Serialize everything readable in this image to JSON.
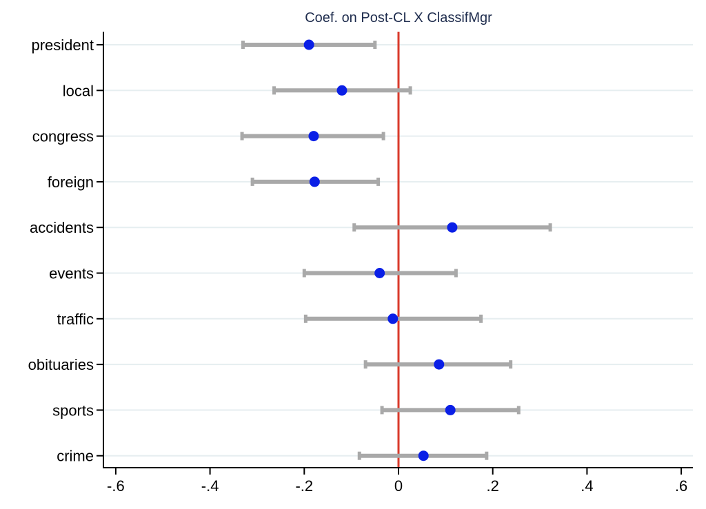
{
  "chart_data": {
    "type": "scatter",
    "subtype": "coefficient-plot",
    "title": "Coef. on Post-CL X ClassifMgr",
    "xlabel": "",
    "ylabel": "",
    "xlim": [
      -0.62,
      0.62
    ],
    "xticks": [
      -0.6,
      -0.4,
      -0.2,
      0,
      0.2,
      0.4,
      0.6
    ],
    "xtick_labels": [
      "-.6",
      "-.4",
      "-.2",
      "0",
      ".2",
      ".4",
      ".6"
    ],
    "reference_line_x": 0,
    "grid": "horizontal",
    "categories": [
      "president",
      "local",
      "congress",
      "foreign",
      "accidents",
      "events",
      "traffic",
      "obituaries",
      "sports",
      "crime"
    ],
    "estimates": [
      -0.19,
      -0.12,
      -0.18,
      -0.178,
      0.114,
      -0.04,
      -0.012,
      0.086,
      0.11,
      0.053
    ],
    "ci_low": [
      -0.33,
      -0.264,
      -0.332,
      -0.31,
      -0.094,
      -0.2,
      -0.197,
      -0.07,
      -0.035,
      -0.083
    ],
    "ci_high": [
      -0.05,
      0.025,
      -0.032,
      -0.043,
      0.322,
      0.122,
      0.175,
      0.238,
      0.255,
      0.187
    ],
    "colors": {
      "point": "#0a1fe6",
      "ci": "#a9a9a9",
      "refline": "#d93a2b",
      "grid": "#e6eef0",
      "axis": "#000000",
      "title": "#1f2d4e"
    }
  }
}
